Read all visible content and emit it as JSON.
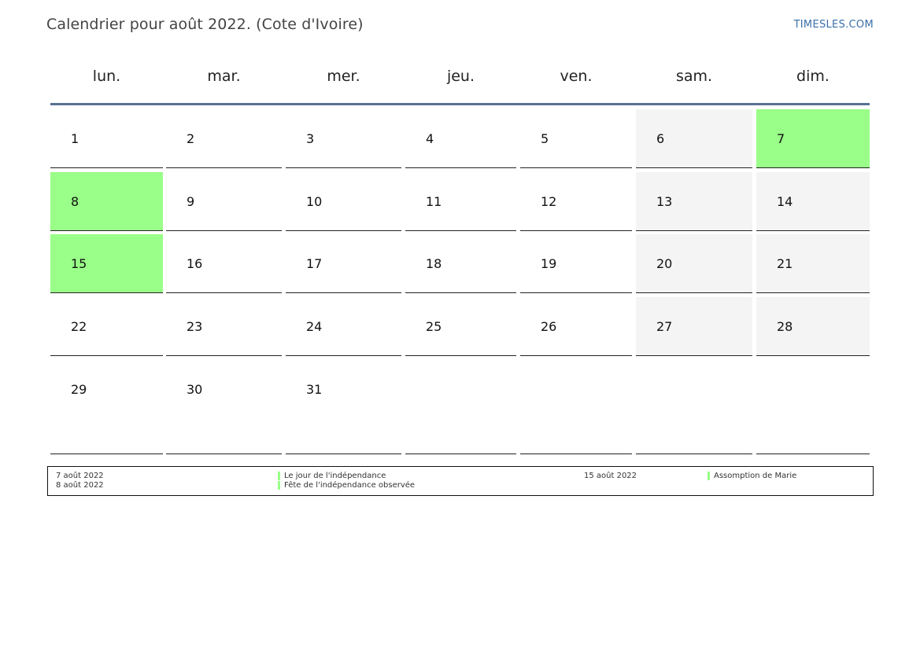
{
  "header": {
    "title": "Calendrier pour août 2022. (Cote d'Ivoire)",
    "site": "TIMESLES.COM"
  },
  "weekdays": [
    "lun.",
    "mar.",
    "mer.",
    "jeu.",
    "ven.",
    "sam.",
    "dim."
  ],
  "weeks": [
    [
      "1",
      "2",
      "3",
      "4",
      "5",
      "6",
      "7"
    ],
    [
      "8",
      "9",
      "10",
      "11",
      "12",
      "13",
      "14"
    ],
    [
      "15",
      "16",
      "17",
      "18",
      "19",
      "20",
      "21"
    ],
    [
      "22",
      "23",
      "24",
      "25",
      "26",
      "27",
      "28"
    ],
    [
      "29",
      "30",
      "31",
      "",
      "",
      "",
      ""
    ]
  ],
  "holiday_days": [
    "7",
    "8",
    "15"
  ],
  "colors": {
    "holiday": "#99ff88",
    "weekend": "#f4f4f4",
    "rule": "#5b7195",
    "link": "#3a6fa8"
  },
  "legend": {
    "left": [
      {
        "date": "7 août 2022",
        "name": "Le jour de l'indépendance"
      },
      {
        "date": "8 août 2022",
        "name": "Fête de l'indépendance observée"
      }
    ],
    "right": [
      {
        "date": "15 août 2022",
        "name": "Assomption de Marie"
      }
    ]
  }
}
